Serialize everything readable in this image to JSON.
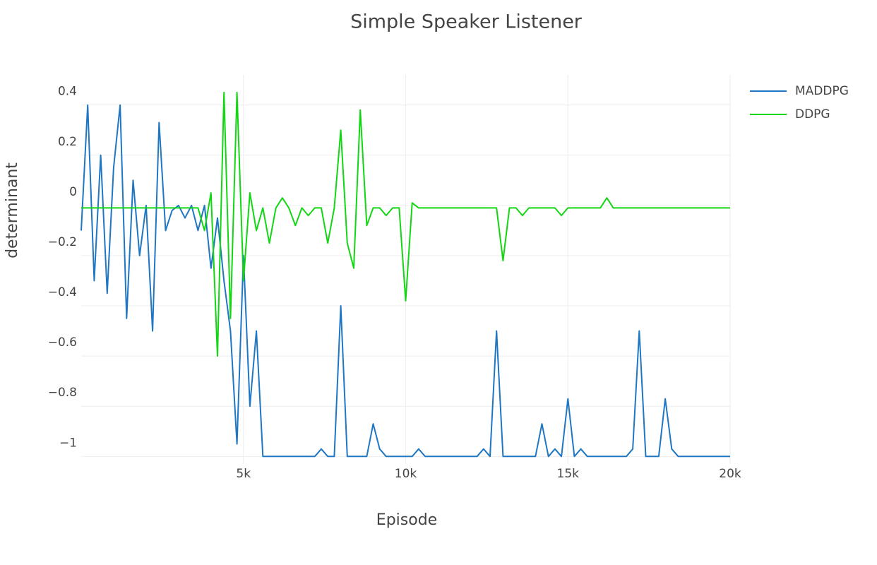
{
  "chart_data": {
    "type": "line",
    "title": "Simple Speaker Listener",
    "x_label": "Episode",
    "y_label": "determinant",
    "x": [
      0,
      200,
      400,
      600,
      800,
      1000,
      1200,
      1400,
      1600,
      1800,
      2000,
      2200,
      2400,
      2600,
      2800,
      3000,
      3200,
      3400,
      3600,
      3800,
      4000,
      4200,
      4400,
      4600,
      4800,
      5000,
      5200,
      5400,
      5600,
      5800,
      6000,
      6200,
      6400,
      6600,
      6800,
      7000,
      7200,
      7400,
      7600,
      7800,
      8000,
      8200,
      8400,
      8600,
      8800,
      9000,
      9200,
      9400,
      9600,
      9800,
      10000,
      10200,
      10400,
      10600,
      10800,
      11000,
      11200,
      11400,
      11600,
      11800,
      12000,
      12200,
      12400,
      12600,
      12800,
      13000,
      13200,
      13400,
      13600,
      13800,
      14000,
      14200,
      14400,
      14600,
      14800,
      15000,
      15200,
      15400,
      15600,
      15800,
      16000,
      16200,
      16400,
      16600,
      16800,
      17000,
      17200,
      17400,
      17600,
      17800,
      18000,
      18200,
      18400,
      18600,
      18800,
      19000,
      19200,
      19400,
      19600,
      19800,
      20000
    ],
    "series": [
      {
        "name": "MADDPG",
        "color": "#1f77c4",
        "values": [
          -0.1,
          0.4,
          -0.3,
          0.2,
          -0.35,
          0.15,
          0.4,
          -0.45,
          0.1,
          -0.2,
          0,
          -0.5,
          0.33,
          -0.1,
          -0.02,
          0,
          -0.05,
          0,
          -0.1,
          0,
          -0.25,
          -0.05,
          -0.3,
          -0.5,
          -0.95,
          -0.2,
          -0.8,
          -0.5,
          -1,
          -1,
          -1,
          -1,
          -1,
          -1,
          -1,
          -1,
          -1,
          -0.97,
          -1,
          -1,
          -0.4,
          -1,
          -1,
          -1,
          -1,
          -0.87,
          -0.97,
          -1,
          -1,
          -1,
          -1,
          -1,
          -0.97,
          -1,
          -1,
          -1,
          -1,
          -1,
          -1,
          -1,
          -1,
          -1,
          -0.97,
          -1,
          -0.5,
          -1,
          -1,
          -1,
          -1,
          -1,
          -1,
          -0.87,
          -1,
          -0.97,
          -1,
          -0.77,
          -1,
          -0.97,
          -1,
          -1,
          -1,
          -1,
          -1,
          -1,
          -1,
          -0.97,
          -0.5,
          -1,
          -1,
          -1,
          -0.77,
          -0.97,
          -1,
          -1,
          -1,
          -1,
          -1,
          -1,
          -1,
          -1,
          -1
        ]
      },
      {
        "name": "DDPG",
        "color": "#13d613",
        "values": [
          -0.01,
          -0.01,
          -0.01,
          -0.01,
          -0.01,
          -0.01,
          -0.01,
          -0.01,
          -0.01,
          -0.01,
          -0.01,
          -0.01,
          -0.01,
          -0.01,
          -0.01,
          -0.01,
          -0.01,
          -0.01,
          -0.01,
          -0.1,
          0.05,
          -0.6,
          0.45,
          -0.45,
          0.45,
          -0.3,
          0.05,
          -0.1,
          -0.01,
          -0.15,
          -0.01,
          0.03,
          -0.01,
          -0.08,
          -0.01,
          -0.04,
          -0.01,
          -0.01,
          -0.15,
          -0.01,
          0.3,
          -0.15,
          -0.25,
          0.38,
          -0.08,
          -0.01,
          -0.01,
          -0.04,
          -0.01,
          -0.01,
          -0.38,
          0.01,
          -0.01,
          -0.01,
          -0.01,
          -0.01,
          -0.01,
          -0.01,
          -0.01,
          -0.01,
          -0.01,
          -0.01,
          -0.01,
          -0.01,
          -0.01,
          -0.22,
          -0.01,
          -0.01,
          -0.04,
          -0.01,
          -0.01,
          -0.01,
          -0.01,
          -0.01,
          -0.04,
          -0.01,
          -0.01,
          -0.01,
          -0.01,
          -0.01,
          -0.01,
          0.03,
          -0.01,
          -0.01,
          -0.01,
          -0.01,
          -0.01,
          -0.01,
          -0.01,
          -0.01,
          -0.01,
          -0.01,
          -0.01,
          -0.01,
          -0.01,
          -0.01,
          -0.01,
          -0.01,
          -0.01,
          -0.01,
          -0.01
        ]
      }
    ],
    "xlim": [
      0,
      20000
    ],
    "ylim": [
      -1.03,
      0.52
    ],
    "xticks": [
      {
        "value": 5000,
        "label": "5k"
      },
      {
        "value": 10000,
        "label": "10k"
      },
      {
        "value": 15000,
        "label": "15k"
      },
      {
        "value": 20000,
        "label": "20k"
      }
    ],
    "yticks": [
      0.4,
      0.2,
      0,
      {
        "value": -0.2,
        "label": "−0.2"
      },
      {
        "value": -0.4,
        "label": "−0.4"
      },
      {
        "value": -0.6,
        "label": "−0.6"
      },
      {
        "value": -0.8,
        "label": "−0.8"
      },
      {
        "value": -1,
        "label": "−1"
      }
    ],
    "grid": true,
    "legend": "top-right"
  }
}
